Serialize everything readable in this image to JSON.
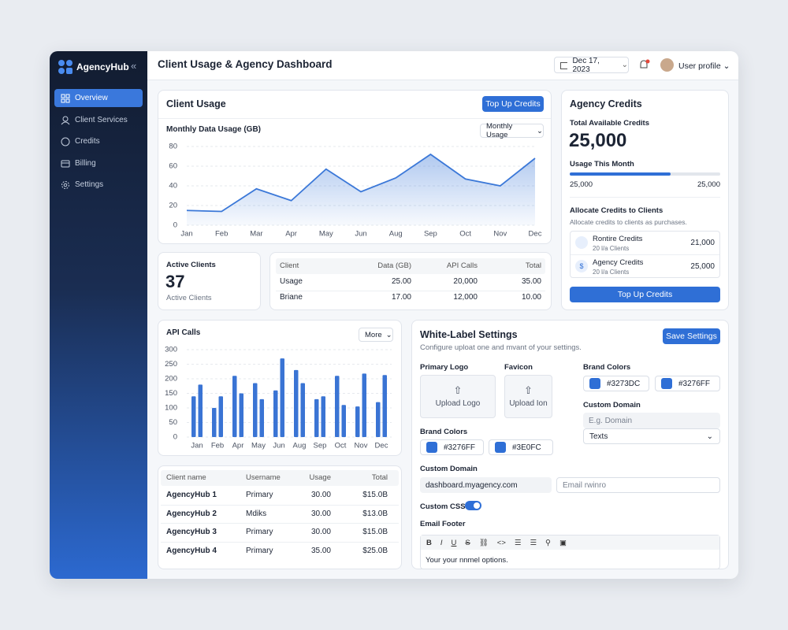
{
  "sidebar": {
    "brand": "AgencyHub",
    "nav": [
      "Overview",
      "Client Services",
      "Credits",
      "Billing",
      "Settings"
    ]
  },
  "header": {
    "title": "Client Usage & Agency Dashboard",
    "date": "Dec 17, 2023",
    "user": "User profile"
  },
  "client_usage": {
    "title": "Client Usage",
    "button": "Top Up Credits",
    "dropdown": "Monthly Usage"
  },
  "api_calls": {
    "dropdown": "More"
  },
  "chart_data": [
    {
      "type": "line",
      "title": "Monthly Data Usage (GB)",
      "categories": [
        "Jan",
        "Feb",
        "Mar",
        "Apr",
        "May",
        "Jun",
        "Aug",
        "Sep",
        "Oct",
        "Nov",
        "Dec"
      ],
      "values": [
        15,
        14,
        37,
        25,
        57,
        34,
        48,
        72,
        47,
        40,
        68
      ],
      "color": "#3b78d8",
      "ylim": [
        0,
        80
      ],
      "yticks": [
        0,
        20,
        40,
        60,
        80
      ],
      "grid": true
    },
    {
      "type": "bar",
      "title": "API Calls",
      "categories": [
        "Jan",
        "Feb",
        "Apr",
        "May",
        "Jun",
        "Aug",
        "Sep",
        "Oct",
        "Nov",
        "Dec"
      ],
      "series": [
        {
          "color": "#3a74d4",
          "values": [
            140,
            100,
            210,
            185,
            160,
            230,
            130,
            210,
            105,
            120
          ]
        },
        {
          "color": "#3a74d4",
          "values": [
            180,
            140,
            150,
            130,
            270,
            185,
            140,
            110,
            218,
            213
          ]
        }
      ],
      "ylim": [
        0,
        300
      ],
      "yticks": [
        0,
        50,
        100,
        150,
        200,
        250,
        300
      ],
      "grid": true
    }
  ],
  "active_clients": {
    "title": "Active Clients",
    "value": "37",
    "caption": "Active Clients"
  },
  "usage_table": {
    "columns": [
      "Client",
      "Data (GB)",
      "API Calls",
      "Total"
    ],
    "rows": [
      [
        "Usage",
        "25.00",
        "20,000",
        "35.00"
      ],
      [
        "Briane",
        "17.00",
        "12,000",
        "10.00"
      ]
    ]
  },
  "agency_credits": {
    "title": "Agency Credits",
    "total_label": "Total Available Credits",
    "total": "25,000",
    "usage_label": "Usage This Month",
    "usage_left": "25,000",
    "usage_right": "25,000",
    "allocate_title": "Allocate Credits to Clients",
    "allocate_note": "Allocate credits to clients as purchases.",
    "items": [
      {
        "name": "Rontire Credits",
        "sub": "20 l/a Clients",
        "amount": "21,000"
      },
      {
        "name": "Agency Credits",
        "sub": "20 l/a Clients",
        "amount": "25,000"
      }
    ],
    "button": "Top Up Credits"
  },
  "clients_table": {
    "columns": [
      "Client name",
      "Username",
      "Usage",
      "Total"
    ],
    "rows": [
      [
        "AgencyHub 1",
        "Primary",
        "30.00",
        "$15.0B"
      ],
      [
        "AgencyHub 2",
        "Mdiks",
        "30.00",
        "$13.0B"
      ],
      [
        "AgencyHub 3",
        "Primary",
        "30.00",
        "$15.0B"
      ],
      [
        "AgencyHub 4",
        "Primary",
        "35.00",
        "$25.0B"
      ]
    ]
  },
  "white_label": {
    "title": "White-Label Settings",
    "subtitle": "Configure uploat one and mvant of your settings.",
    "button": "Save Settings",
    "primary_logo": "Primary Logo",
    "upload_logo": "Upload Logo",
    "favicon": "Favicon",
    "upload_icon": "Upload Ion",
    "brand_colors_label": "Brand Colors",
    "brand_colors": [
      "#3273DC",
      "#3276FF"
    ],
    "custom_domain_label": "Custom Domain",
    "domain_placeholder": "E.g. Domain",
    "select": "Texts",
    "brand_colors_label_2": "Brand Colors",
    "brand_colors_2": [
      "#3276FF",
      "#3E0FC"
    ],
    "custom_domain_label_2": "Custom Domain",
    "domain_value": "dashboard.myagency.com",
    "email_placeholder": "Email rwinro",
    "custom_css": "Custom CSS",
    "email_footer": "Email Footer",
    "editor_text": "Your your nnmel options."
  }
}
